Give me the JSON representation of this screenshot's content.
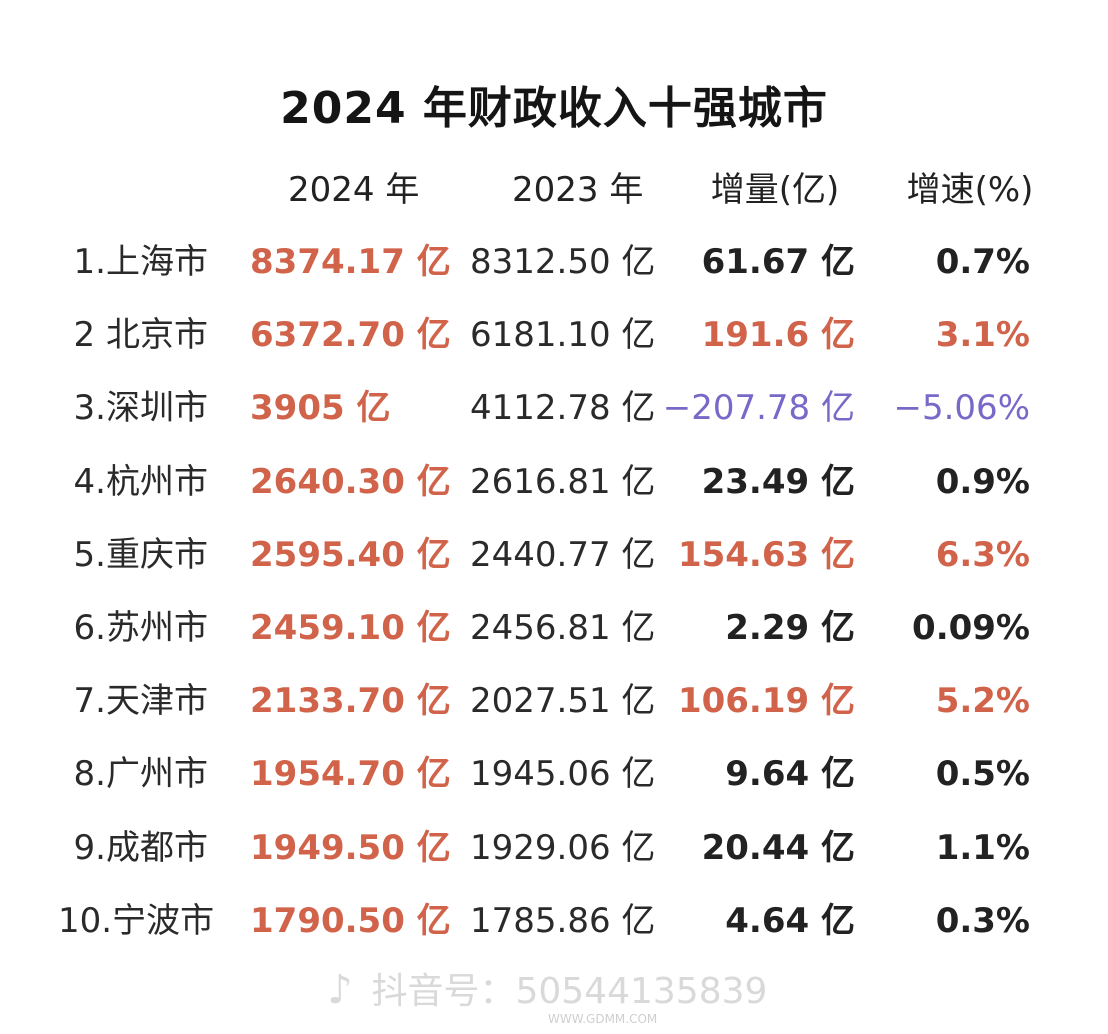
{
  "title": "2024 年财政收入十强城市",
  "headers": {
    "y2024": "2024 年",
    "y2023": "2023 年",
    "increase": "增量(亿)",
    "rate": "增速(%)"
  },
  "colors": {
    "accent_red": "#d0634a",
    "negative_purple": "#7a68c8",
    "text_dark": "#222222"
  },
  "rows": [
    {
      "city": "1.上海市",
      "y2024": "8374.17 亿",
      "y2023": "8312.50 亿",
      "increase": "61.67 亿",
      "rate": "0.7%",
      "tone": "dark"
    },
    {
      "city": "2 北京市",
      "y2024": "6372.70 亿",
      "y2023": "6181.10 亿",
      "increase": "191.6 亿",
      "rate": "3.1%",
      "tone": "red"
    },
    {
      "city": "3.深圳市",
      "y2024": "3905 亿",
      "y2023": "4112.78 亿",
      "increase": "−207.78 亿",
      "rate": "−5.06%",
      "tone": "purple"
    },
    {
      "city": "4.杭州市",
      "y2024": "2640.30 亿",
      "y2023": "2616.81 亿",
      "increase": "23.49 亿",
      "rate": "0.9%",
      "tone": "dark"
    },
    {
      "city": "5.重庆市",
      "y2024": "2595.40 亿",
      "y2023": "2440.77 亿",
      "increase": "154.63 亿",
      "rate": "6.3%",
      "tone": "red"
    },
    {
      "city": "6.苏州市",
      "y2024": "2459.10 亿",
      "y2023": "2456.81 亿",
      "increase": "2.29 亿",
      "rate": "0.09%",
      "tone": "dark"
    },
    {
      "city": "7.天津市",
      "y2024": "2133.70 亿",
      "y2023": "2027.51 亿",
      "increase": "106.19 亿",
      "rate": "5.2%",
      "tone": "red"
    },
    {
      "city": "8.广州市",
      "y2024": "1954.70 亿",
      "y2023": "1945.06 亿",
      "increase": "9.64 亿",
      "rate": "0.5%",
      "tone": "dark"
    },
    {
      "city": "9.成都市",
      "y2024": "1949.50 亿",
      "y2023": "1929.06 亿",
      "increase": "20.44 亿",
      "rate": "1.1%",
      "tone": "dark"
    },
    {
      "city": "10.宁波市",
      "y2024": "1790.50 亿",
      "y2023": "1785.86 亿",
      "increase": "4.64 亿",
      "rate": "0.3%",
      "tone": "dark"
    }
  ],
  "watermark": {
    "icon": "tiktok-note-icon",
    "text": "抖音号：50544135839",
    "site": "WWW.GDMM.COM"
  }
}
